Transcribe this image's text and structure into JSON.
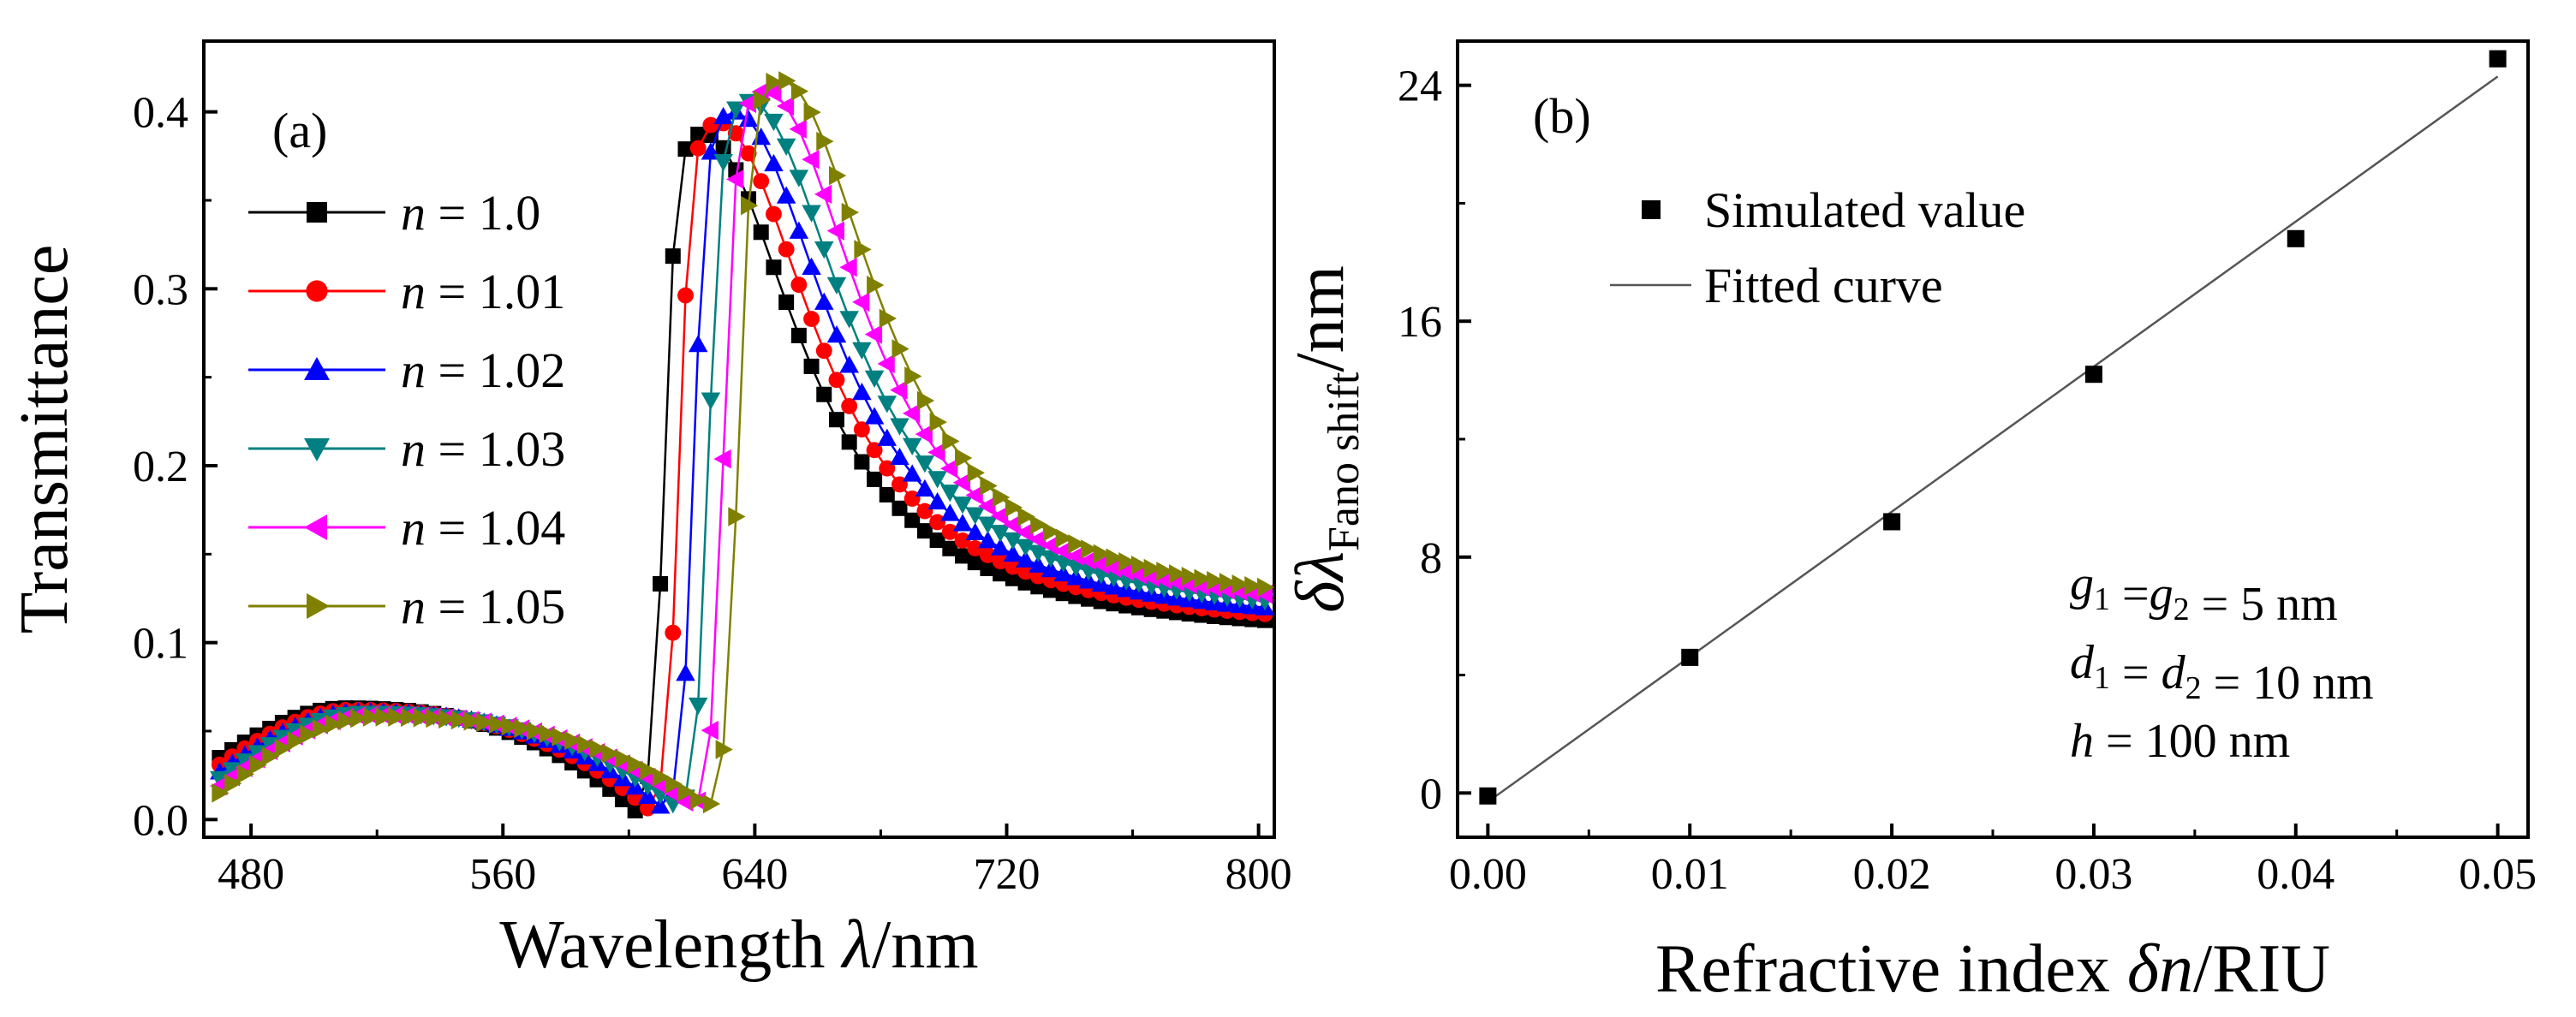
{
  "chart_data": [
    {
      "type": "line",
      "panel_label": "(a)",
      "xlabel_text": "Wavelength ",
      "xlabel_symbol": "λ",
      "xlabel_unit": "/nm",
      "ylabel": "Transmittance",
      "xlim": [
        465,
        805
      ],
      "ylim": [
        -0.01,
        0.44
      ],
      "xticks": [
        480,
        560,
        640,
        720,
        800
      ],
      "yticks": [
        0.0,
        0.1,
        0.2,
        0.3,
        0.4
      ],
      "ytick_labels": [
        "0.0",
        "0.1",
        "0.2",
        "0.3",
        "0.4"
      ],
      "legend_position": "upper-left",
      "series": [
        {
          "name": "1.0",
          "legend_prefix": "n",
          "legend_eq": " = ",
          "marker": "square",
          "color": "#000000"
        },
        {
          "name": "1.01",
          "legend_prefix": "n",
          "legend_eq": " = ",
          "marker": "circle",
          "color": "#ff0000"
        },
        {
          "name": "1.02",
          "legend_prefix": "n",
          "legend_eq": " = ",
          "marker": "triangle-up",
          "color": "#0000ff"
        },
        {
          "name": "1.03",
          "legend_prefix": "n",
          "legend_eq": " = ",
          "marker": "triangle-down",
          "color": "#008080"
        },
        {
          "name": "1.04",
          "legend_prefix": "n",
          "legend_eq": " = ",
          "marker": "triangle-left",
          "color": "#ff00ff"
        },
        {
          "name": "1.05",
          "legend_prefix": "n",
          "legend_eq": " = ",
          "marker": "triangle-right",
          "color": "#808000"
        }
      ],
      "curve_model": {
        "x_start": 470,
        "x_end": 802,
        "step": 4,
        "peak_x": 624,
        "peak_height": 0.388,
        "peak_shift_per_series": 5,
        "min_x": 602,
        "min_shift_per_series": 4.5,
        "bump_x": 510,
        "bump_height": 0.063
      }
    },
    {
      "type": "scatter",
      "panel_label": "(b)",
      "xlabel_text": "Refractive index ",
      "xlabel_symbol": "δn",
      "xlabel_unit": "/RIU",
      "ylabel_main": "δλ",
      "ylabel_sub": "Fano shift",
      "ylabel_unit": "/nm",
      "xlim": [
        -0.0015,
        0.0515
      ],
      "ylim": [
        -1.5,
        25.5
      ],
      "xticks": [
        0.0,
        0.01,
        0.02,
        0.03,
        0.04,
        0.05
      ],
      "xtick_labels": [
        "0.00",
        "0.01",
        "0.02",
        "0.03",
        "0.04",
        "0.05"
      ],
      "yticks": [
        0,
        8,
        16,
        24
      ],
      "ytick_labels": [
        "0",
        "8",
        "16",
        "24"
      ],
      "legend_position": "upper-left",
      "series": [
        {
          "name": "Simulated value",
          "type": "scatter",
          "marker": "square",
          "color": "#000000",
          "x": [
            0.0,
            0.01,
            0.02,
            0.03,
            0.04,
            0.05
          ],
          "y": [
            -0.1,
            4.6,
            9.2,
            14.2,
            18.8,
            24.9
          ]
        },
        {
          "name": "Fitted curve",
          "type": "line",
          "color": "#555555",
          "x": [
            0.0,
            0.05
          ],
          "y": [
            -0.3,
            24.3
          ]
        }
      ],
      "annotations": [
        {
          "text": [
            {
              "t": "g",
              "i": true
            },
            {
              "t": "1",
              "sub": true
            },
            {
              "t": " ="
            },
            {
              "t": "g",
              "i": true
            },
            {
              "t": "2",
              "sub": true
            },
            {
              "t": " = 5 nm"
            }
          ]
        },
        {
          "text": [
            {
              "t": "d",
              "i": true
            },
            {
              "t": "1",
              "sub": true
            },
            {
              "t": " = "
            },
            {
              "t": "d",
              "i": true
            },
            {
              "t": "2",
              "sub": true
            },
            {
              "t": " = 10 nm"
            }
          ]
        },
        {
          "text": [
            {
              "t": "h",
              "i": true
            },
            {
              "t": " = 100 nm"
            }
          ]
        }
      ]
    }
  ]
}
